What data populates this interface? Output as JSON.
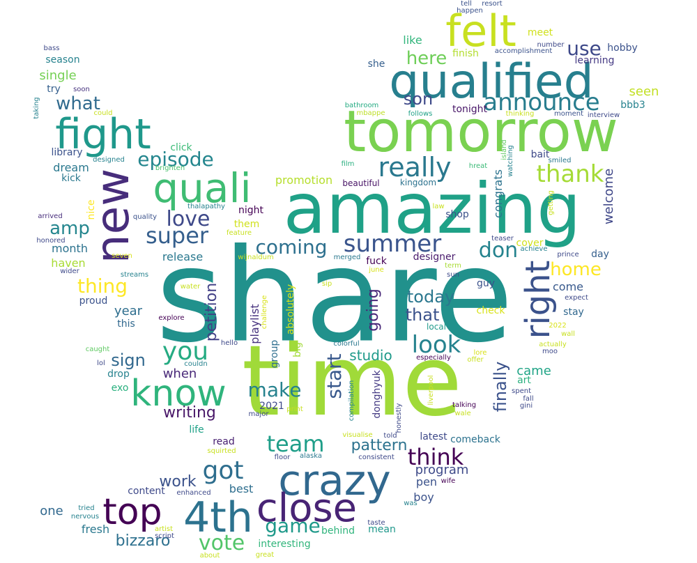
{
  "wordcloud": {
    "words": [
      {
        "text": "share",
        "color": "#21918c"
      },
      {
        "text": "time",
        "color": "#a0da39"
      },
      {
        "text": "amazing",
        "color": "#1fa187"
      },
      {
        "text": "tomorrow",
        "color": "#7ad151"
      },
      {
        "text": "qualified",
        "color": "#277f8e"
      },
      {
        "text": "felt",
        "color": "#c8e020"
      },
      {
        "text": "fight",
        "color": "#1f988b"
      },
      {
        "text": "quali",
        "color": "#3fbc73"
      },
      {
        "text": "new",
        "color": "#472d7b"
      },
      {
        "text": "crazy",
        "color": "#31688e"
      },
      {
        "text": "close",
        "color": "#482475"
      },
      {
        "text": "4th",
        "color": "#2c728e"
      },
      {
        "text": "top",
        "color": "#440154"
      },
      {
        "text": "know",
        "color": "#2fb47c"
      },
      {
        "text": "right",
        "color": "#3b528b"
      },
      {
        "text": "really",
        "color": "#2a788e"
      },
      {
        "text": "announce",
        "color": "#287d8e"
      },
      {
        "text": "thank",
        "color": "#a5db36"
      },
      {
        "text": "use",
        "color": "#3e4989"
      },
      {
        "text": "episode",
        "color": "#24868e"
      },
      {
        "text": "love",
        "color": "#3e4989"
      },
      {
        "text": "super",
        "color": "#355f8d"
      },
      {
        "text": "summer",
        "color": "#3a548c"
      },
      {
        "text": "coming",
        "color": "#2d708e"
      },
      {
        "text": "don",
        "color": "#25838e"
      },
      {
        "text": "look",
        "color": "#26828e"
      },
      {
        "text": "you",
        "color": "#25ab82"
      },
      {
        "text": "make",
        "color": "#26828e"
      },
      {
        "text": "team",
        "color": "#1f9e89"
      },
      {
        "text": "got",
        "color": "#2e6e8e"
      },
      {
        "text": "think",
        "color": "#440154"
      },
      {
        "text": "game",
        "color": "#1f998a"
      },
      {
        "text": "vote",
        "color": "#52c569"
      },
      {
        "text": "bizzaro",
        "color": "#2d708e"
      },
      {
        "text": "finally",
        "color": "#3b528b"
      },
      {
        "text": "home",
        "color": "#fde725"
      },
      {
        "text": "here",
        "color": "#6ece58"
      },
      {
        "text": "son",
        "color": "#3e4989"
      },
      {
        "text": "what",
        "color": "#306a8e"
      },
      {
        "text": "amp",
        "color": "#24868e"
      },
      {
        "text": "thing",
        "color": "#fde725"
      },
      {
        "text": "petition",
        "color": "#424086"
      },
      {
        "text": "going",
        "color": "#482878"
      },
      {
        "text": "pattern",
        "color": "#2c728e"
      },
      {
        "text": "start",
        "color": "#38588c"
      },
      {
        "text": "writing",
        "color": "#481668"
      },
      {
        "text": "work",
        "color": "#3b528b"
      },
      {
        "text": "studio",
        "color": "#1f9a8a"
      },
      {
        "text": "today",
        "color": "#2a778e"
      },
      {
        "text": "that",
        "color": "#3b528b"
      },
      {
        "text": "sign",
        "color": "#31688e"
      },
      {
        "text": "playlist",
        "color": "#46327e"
      },
      {
        "text": "welcome",
        "color": "#3f4788"
      },
      {
        "text": "came",
        "color": "#20a486"
      },
      {
        "text": "seen",
        "color": "#c2df23"
      },
      {
        "text": "single",
        "color": "#75d054"
      },
      {
        "text": "promotion",
        "color": "#b5de2b"
      },
      {
        "text": "congrats",
        "color": "#2c728e"
      },
      {
        "text": "year",
        "color": "#2e6e8e"
      },
      {
        "text": "when",
        "color": "#482878"
      },
      {
        "text": "pen",
        "color": "#3b528b"
      },
      {
        "text": "program",
        "color": "#3e4a89"
      },
      {
        "text": "best",
        "color": "#2e6e8e"
      },
      {
        "text": "one",
        "color": "#31688e"
      },
      {
        "text": "fresh",
        "color": "#2a788e"
      },
      {
        "text": "mean",
        "color": "#1f988b"
      },
      {
        "text": "boy",
        "color": "#3b528b"
      },
      {
        "text": "interesting",
        "color": "#31b57b"
      },
      {
        "text": "behind",
        "color": "#2fb47c"
      },
      {
        "text": "comeback",
        "color": "#2c728e"
      },
      {
        "text": "latest",
        "color": "#3e4989"
      },
      {
        "text": "read",
        "color": "#482071"
      },
      {
        "text": "life",
        "color": "#1fa187"
      },
      {
        "text": "2021",
        "color": "#3e4989"
      },
      {
        "text": "group",
        "color": "#2e6e8e"
      },
      {
        "text": "big",
        "color": "#a2da37"
      },
      {
        "text": "absolutely",
        "color": "#d8e219"
      },
      {
        "text": "donghyuk",
        "color": "#443a83"
      },
      {
        "text": "fuck",
        "color": "#440154"
      },
      {
        "text": "designer",
        "color": "#481a6c"
      },
      {
        "text": "shop",
        "color": "#3b528b"
      },
      {
        "text": "kingdom",
        "color": "#2c728e"
      },
      {
        "text": "beautiful",
        "color": "#471365"
      },
      {
        "text": "night",
        "color": "#440154"
      },
      {
        "text": "release",
        "color": "#2a788e"
      },
      {
        "text": "month",
        "color": "#2c728e"
      },
      {
        "text": "haven",
        "color": "#a8db34"
      },
      {
        "text": "cover",
        "color": "#d0e11c"
      },
      {
        "text": "come",
        "color": "#38598c"
      },
      {
        "text": "stay",
        "color": "#31688e"
      },
      {
        "text": "art",
        "color": "#2ab07f"
      },
      {
        "text": "guy",
        "color": "#3b528b"
      },
      {
        "text": "check",
        "color": "#d8e219"
      },
      {
        "text": "local",
        "color": "#1f9a8a"
      },
      {
        "text": "dream",
        "color": "#2a788e"
      },
      {
        "text": "kick",
        "color": "#2a788e"
      },
      {
        "text": "library",
        "color": "#3b528b"
      },
      {
        "text": "click",
        "color": "#3aba76"
      },
      {
        "text": "designed",
        "color": "#26828e"
      },
      {
        "text": "brighten",
        "color": "#4ac16d"
      },
      {
        "text": "like",
        "color": "#31b57b"
      },
      {
        "text": "finish",
        "color": "#b2dd2d"
      },
      {
        "text": "meet",
        "color": "#d0e11c"
      },
      {
        "text": "accomplishment",
        "color": "#3b528b"
      },
      {
        "text": "hobby",
        "color": "#3b528b"
      },
      {
        "text": "learning",
        "color": "#443983"
      },
      {
        "text": "she",
        "color": "#355f8d"
      },
      {
        "text": "bbb3",
        "color": "#26828e"
      },
      {
        "text": "tonight",
        "color": "#481668"
      },
      {
        "text": "moment",
        "color": "#3b528b"
      },
      {
        "text": "interview",
        "color": "#3e4989"
      },
      {
        "text": "bait",
        "color": "#3e4989"
      },
      {
        "text": "smiled",
        "color": "#2a788e"
      },
      {
        "text": "island",
        "color": "#5ec962"
      },
      {
        "text": "watching",
        "color": "#26828e"
      },
      {
        "text": "hreat",
        "color": "#3aba76"
      },
      {
        "text": "film",
        "color": "#29af7f"
      },
      {
        "text": "bathroom",
        "color": "#25ab82"
      },
      {
        "text": "mbappe",
        "color": "#bddf26"
      },
      {
        "text": "follows",
        "color": "#1fa187"
      },
      {
        "text": "thinking",
        "color": "#c8e020"
      },
      {
        "text": "number",
        "color": "#3e4989"
      },
      {
        "text": "tell",
        "color": "#3b528b"
      },
      {
        "text": "resort",
        "color": "#3b528b"
      },
      {
        "text": "happen",
        "color": "#3b528b"
      },
      {
        "text": "bass",
        "color": "#3e4989"
      },
      {
        "text": "season",
        "color": "#26828e"
      },
      {
        "text": "try",
        "color": "#355f8d"
      },
      {
        "text": "soon",
        "color": "#46327e"
      },
      {
        "text": "could",
        "color": "#c8e020"
      },
      {
        "text": "taking",
        "color": "#26828e"
      },
      {
        "text": "nice",
        "color": "#fde725"
      },
      {
        "text": "arrived",
        "color": "#472d7b"
      },
      {
        "text": "quality",
        "color": "#3b528b"
      },
      {
        "text": "thalapathy",
        "color": "#26828e"
      },
      {
        "text": "them",
        "color": "#d0e11c"
      },
      {
        "text": "feature",
        "color": "#c8e020"
      },
      {
        "text": "honored",
        "color": "#3e4989"
      },
      {
        "text": "seven",
        "color": "#d8e219"
      },
      {
        "text": "streams",
        "color": "#26828e"
      },
      {
        "text": "wider",
        "color": "#3e4989"
      },
      {
        "text": "proud",
        "color": "#3b528b"
      },
      {
        "text": "this",
        "color": "#31688e"
      },
      {
        "text": "water",
        "color": "#c8e020"
      },
      {
        "text": "explore",
        "color": "#440154"
      },
      {
        "text": "wijnaldum",
        "color": "#c8e020"
      },
      {
        "text": "challenge",
        "color": "#d8e219"
      },
      {
        "text": "merged",
        "color": "#2a788e"
      },
      {
        "text": "june",
        "color": "#d8e219"
      },
      {
        "text": "sip",
        "color": "#c8e020"
      },
      {
        "text": "term",
        "color": "#a8db34"
      },
      {
        "text": "sun",
        "color": "#3e4989"
      },
      {
        "text": "law",
        "color": "#c8e020"
      },
      {
        "text": "teaser",
        "color": "#3e4989"
      },
      {
        "text": "getting",
        "color": "#c8e020"
      },
      {
        "text": "achieve",
        "color": "#26828e"
      },
      {
        "text": "prince",
        "color": "#3e4989"
      },
      {
        "text": "day",
        "color": "#355f8d"
      },
      {
        "text": "expect",
        "color": "#3e4989"
      },
      {
        "text": "2022",
        "color": "#d8e219"
      },
      {
        "text": "wall",
        "color": "#c8e020"
      },
      {
        "text": "actually",
        "color": "#c8e020"
      },
      {
        "text": "moo",
        "color": "#3e4989"
      },
      {
        "text": "lore",
        "color": "#d8e219"
      },
      {
        "text": "offer",
        "color": "#c8e020"
      },
      {
        "text": "especially",
        "color": "#440154"
      },
      {
        "text": "colorful",
        "color": "#2a788e"
      },
      {
        "text": "hello",
        "color": "#3e4989"
      },
      {
        "text": "caught",
        "color": "#5ec962"
      },
      {
        "text": "lol",
        "color": "#3e4989"
      },
      {
        "text": "couldn",
        "color": "#26828e"
      },
      {
        "text": "drop",
        "color": "#26828e"
      },
      {
        "text": "exo",
        "color": "#2ab07f"
      },
      {
        "text": "major",
        "color": "#3e4989"
      },
      {
        "text": "print",
        "color": "#c8e020"
      },
      {
        "text": "compilation",
        "color": "#26828e"
      },
      {
        "text": "liverpool",
        "color": "#c8e020"
      },
      {
        "text": "honestly",
        "color": "#3e4989"
      },
      {
        "text": "talking",
        "color": "#440154"
      },
      {
        "text": "wale",
        "color": "#c8e020"
      },
      {
        "text": "spent",
        "color": "#3e4989"
      },
      {
        "text": "fall",
        "color": "#3e4989"
      },
      {
        "text": "gini",
        "color": "#3e4989"
      },
      {
        "text": "visualise",
        "color": "#c8e020"
      },
      {
        "text": "told",
        "color": "#3e4989"
      },
      {
        "text": "squirted",
        "color": "#c8e020"
      },
      {
        "text": "floor",
        "color": "#3e4989"
      },
      {
        "text": "alaska",
        "color": "#2a788e"
      },
      {
        "text": "consistent",
        "color": "#3e4989"
      },
      {
        "text": "content",
        "color": "#3e4989"
      },
      {
        "text": "enhanced",
        "color": "#3e4989"
      },
      {
        "text": "wife",
        "color": "#440154"
      },
      {
        "text": "tried",
        "color": "#26828e"
      },
      {
        "text": "nervous",
        "color": "#26828e"
      },
      {
        "text": "was",
        "color": "#26828e"
      },
      {
        "text": "taste",
        "color": "#3e4989"
      },
      {
        "text": "artist",
        "color": "#c8e020"
      },
      {
        "text": "script",
        "color": "#3e4989"
      },
      {
        "text": "about",
        "color": "#c8e020"
      },
      {
        "text": "great",
        "color": "#c8e020"
      }
    ]
  }
}
